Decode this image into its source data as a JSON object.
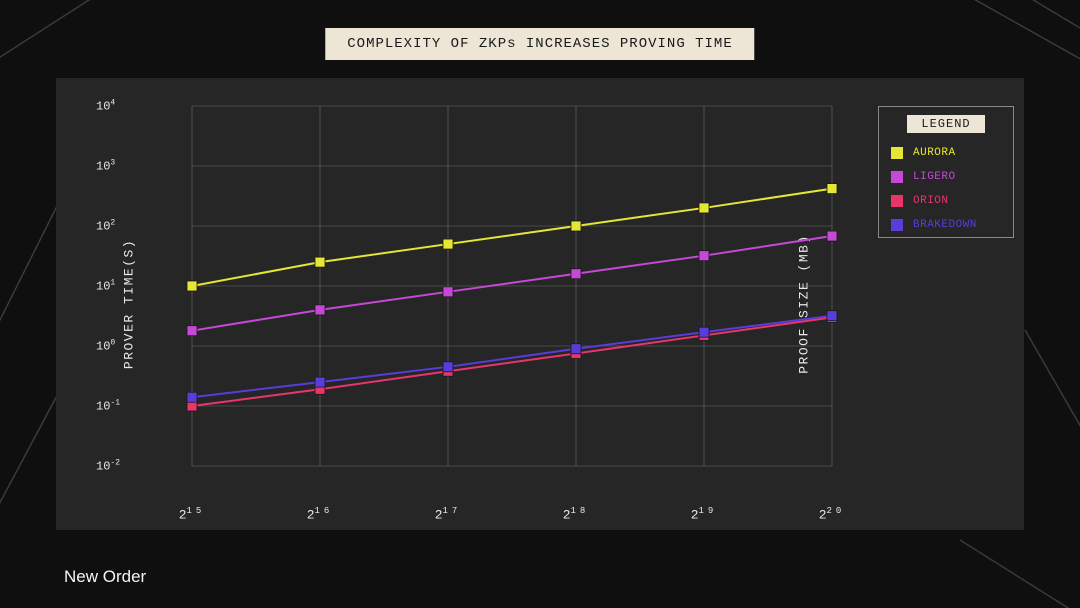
{
  "title": "COMPLEXITY OF ZKPs INCREASES PROVING TIME",
  "brand": {
    "name": "New Order"
  },
  "chart": {
    "type": "line",
    "background_color": "#262626",
    "page_background": "#0f0f0f",
    "title_bg": "#ede6d6",
    "title_fg": "#1a1a1a",
    "axis_text_color": "#e8e8e8",
    "grid_color": "#6a6a6a",
    "x_categories": [
      "2^15",
      "2^16",
      "2^17",
      "2^18",
      "2^19",
      "2^20"
    ],
    "x_tick_labels": [
      {
        "base": "2",
        "sup": "15"
      },
      {
        "base": "2",
        "sup": "16"
      },
      {
        "base": "2",
        "sup": "17"
      },
      {
        "base": "2",
        "sup": "18"
      },
      {
        "base": "2",
        "sup": "19"
      },
      {
        "base": "2",
        "sup": "20"
      }
    ],
    "y_scale": "log",
    "y_ticks": [
      {
        "exp": -2,
        "label_base": "10",
        "label_sup": "-2"
      },
      {
        "exp": -1,
        "label_base": "10",
        "label_sup": "-1"
      },
      {
        "exp": 0,
        "label_base": "10",
        "label_sup": "0"
      },
      {
        "exp": 1,
        "label_base": "10",
        "label_sup": "1"
      },
      {
        "exp": 2,
        "label_base": "10",
        "label_sup": "2"
      },
      {
        "exp": 3,
        "label_base": "10",
        "label_sup": "3"
      },
      {
        "exp": 4,
        "label_base": "10",
        "label_sup": "4"
      }
    ],
    "y_min_exp": -2,
    "y_max_exp": 4,
    "y_label_left": "PROVER TIME(S)",
    "y_label_right": "PROOF SIZE (MB)",
    "legend_title": "LEGEND",
    "marker_shape": "square",
    "marker_size": 10,
    "line_width": 2,
    "series": [
      {
        "name": "AURORA",
        "color": "#e6e635",
        "values": [
          10,
          25,
          50,
          100,
          200,
          420
        ]
      },
      {
        "name": "LIGERO",
        "color": "#c548d6",
        "values": [
          1.8,
          4,
          8,
          16,
          32,
          68
        ]
      },
      {
        "name": "ORION",
        "color": "#e8356a",
        "values": [
          0.1,
          0.19,
          0.38,
          0.75,
          1.5,
          3.0
        ]
      },
      {
        "name": "BRAKEDOWN",
        "color": "#5b3bd9",
        "values": [
          0.14,
          0.25,
          0.45,
          0.9,
          1.7,
          3.2
        ]
      }
    ]
  }
}
